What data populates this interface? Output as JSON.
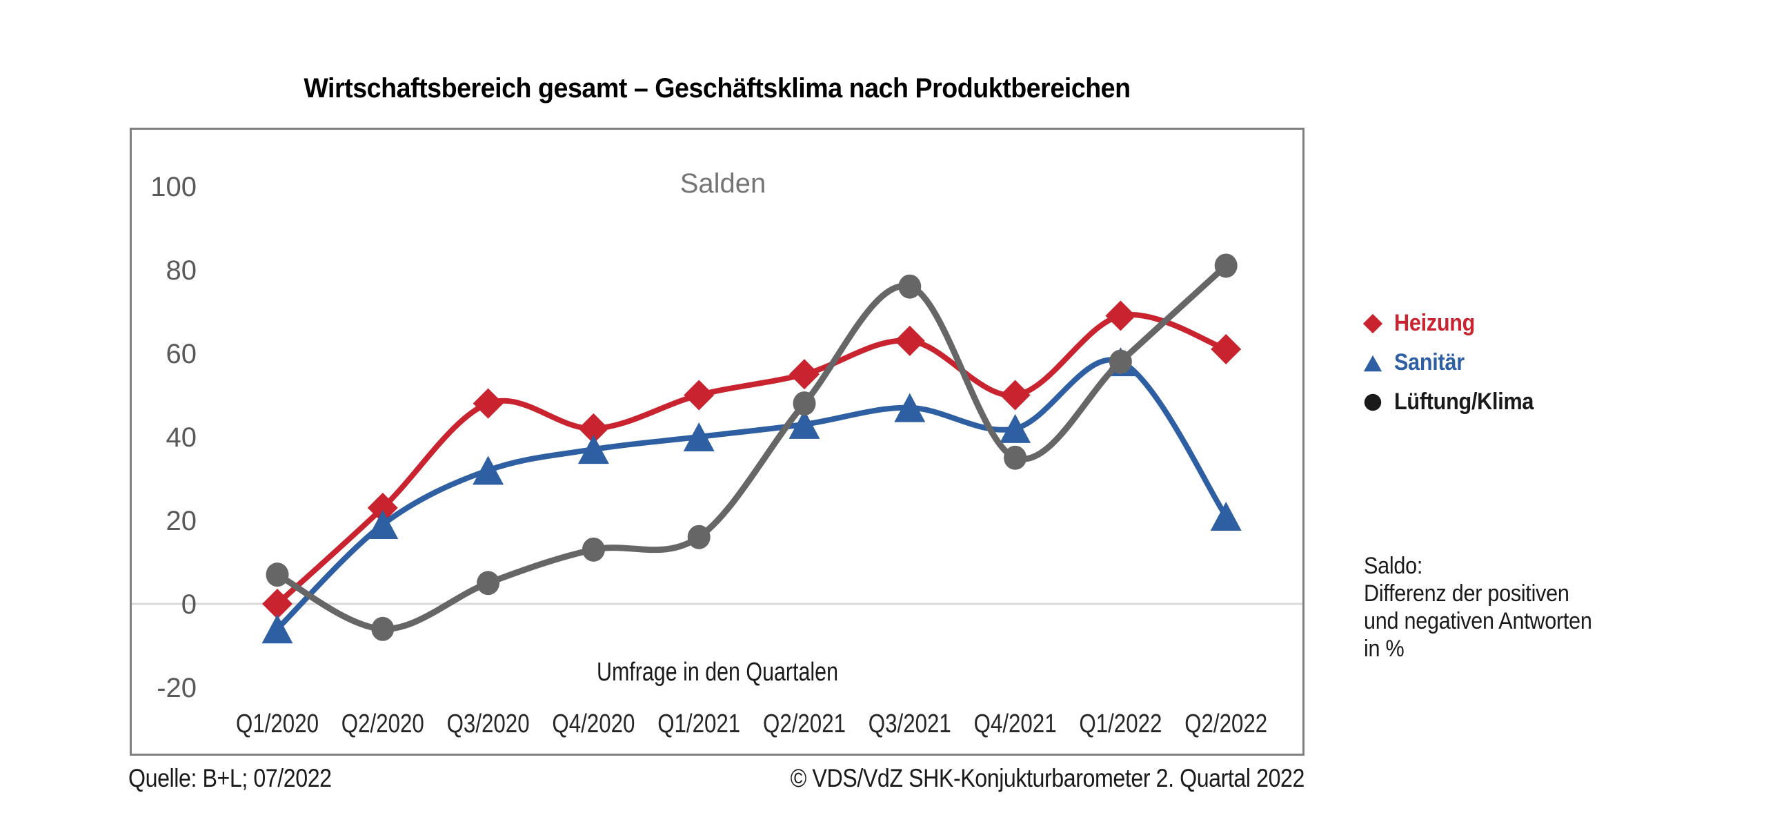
{
  "title": "Wirtschaftsbereich gesamt – Geschäftsklima nach Produktbereichen",
  "chart_data": {
    "type": "line",
    "title": "Wirtschaftsbereich gesamt – Geschäftsklima nach Produktbereichen",
    "inner_label": "Salden",
    "xlabel": "Umfrage in den Quartalen",
    "ylabel": "",
    "categories": [
      "Q1/2020",
      "Q2/2020",
      "Q3/2020",
      "Q4/2020",
      "Q1/2021",
      "Q2/2021",
      "Q3/2021",
      "Q4/2021",
      "Q1/2022",
      "Q2/2022"
    ],
    "yticks": [
      100,
      80,
      60,
      40,
      20,
      0,
      -20
    ],
    "ylim": [
      -34,
      114
    ],
    "grid": "zero-line-only",
    "smooth": true,
    "legend_position": "right",
    "series": [
      {
        "name": "Heizung",
        "marker": "diamond",
        "color": "#C8232E",
        "line_width": 8,
        "values": [
          0,
          23,
          48,
          42,
          50,
          55,
          63,
          50,
          69,
          61
        ]
      },
      {
        "name": "Sanitär",
        "marker": "triangle",
        "color": "#2E5FA3",
        "line_width": 8,
        "values": [
          -6,
          19,
          32,
          37,
          40,
          43,
          47,
          42,
          58,
          21
        ]
      },
      {
        "name": "Lüftung/Klima",
        "marker": "circle",
        "color": "#666666",
        "line_width": 9,
        "values": [
          7,
          -6,
          5,
          13,
          16,
          48,
          76,
          35,
          58,
          81
        ]
      }
    ]
  },
  "legend": {
    "items": [
      {
        "label": "Heizung",
        "color": "#C8232E",
        "marker": "diamond"
      },
      {
        "label": "Sanitär",
        "color": "#2E5FA3",
        "marker": "triangle"
      },
      {
        "label": "Lüftung/Klima",
        "color": "#1A1A1A",
        "marker": "circle"
      }
    ]
  },
  "side_note": "Saldo:\nDifferenz der positiven\nund negativen Antworten\nin %",
  "footer": {
    "left": "Quelle: B+L; 07/2022",
    "right": "© VDS/VdZ SHK-Konjukturbarometer 2. Quartal 2022"
  },
  "style": {
    "frame_color": "#808080",
    "zero_line_color": "#D9D9D9",
    "ytick_color": "#595959",
    "xtick_color": "#262626",
    "inner_label_color": "#757575",
    "xlabel_color": "#1a1a1a"
  }
}
